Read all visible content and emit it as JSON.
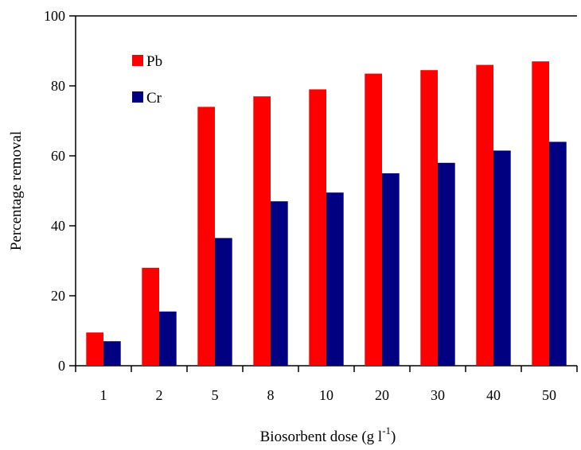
{
  "chart_data": {
    "type": "bar",
    "categories": [
      "1",
      "2",
      "5",
      "8",
      "10",
      "20",
      "30",
      "40",
      "50"
    ],
    "series": [
      {
        "name": "Pb",
        "color": "#ff0000",
        "values": [
          9.5,
          28,
          74,
          77,
          79,
          83.5,
          84.5,
          86,
          87
        ]
      },
      {
        "name": "Cr",
        "color": "#000080",
        "values": [
          7,
          15.5,
          36.5,
          47,
          49.5,
          55,
          58,
          61.5,
          64
        ]
      }
    ],
    "title": "",
    "xlabel": "Biosorbent dose (g l",
    "xlabel_sup": "-1",
    "xlabel_suffix": ")",
    "ylabel": "Percentage removal",
    "ylim": [
      0,
      100
    ],
    "yticks": [
      0,
      20,
      40,
      60,
      80,
      100
    ],
    "grid": false,
    "legend": "top-left"
  }
}
